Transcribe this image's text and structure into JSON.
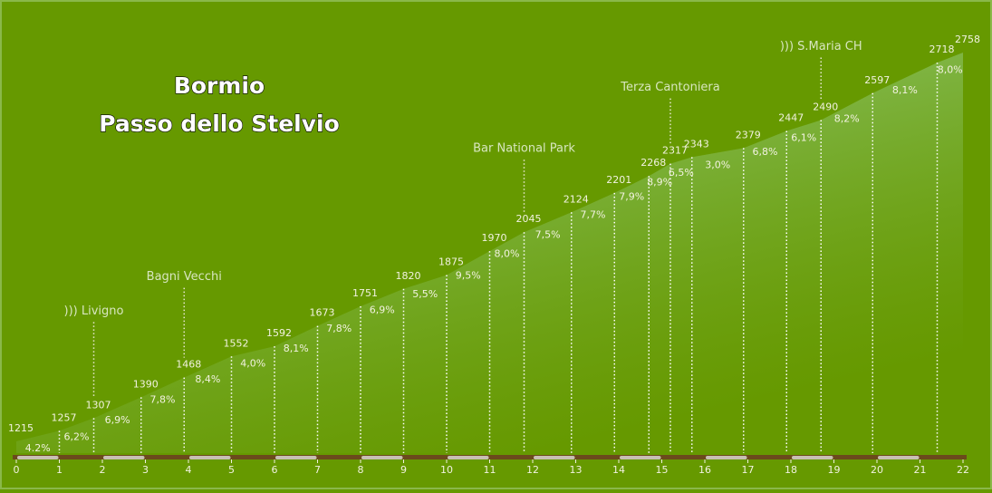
{
  "chart_data": {
    "type": "area",
    "title_lines": [
      "Bormio",
      "Passo dello Stelvio"
    ],
    "x": [
      0,
      1,
      1.8,
      2.9,
      3.9,
      5,
      6,
      7,
      8,
      9,
      10,
      11,
      11.8,
      12.9,
      13.9,
      14.7,
      15.2,
      15.7,
      16.9,
      17.9,
      18.7,
      19.9,
      21.4,
      22
    ],
    "values": [
      1215,
      1257,
      1307,
      1390,
      1468,
      1552,
      1592,
      1673,
      1751,
      1820,
      1875,
      1970,
      2045,
      2124,
      2201,
      2268,
      2317,
      2343,
      2379,
      2447,
      2490,
      2597,
      2718,
      2758
    ],
    "gradient_labels": [
      "4.2%",
      "6,2%",
      "6,9%",
      "7,8%",
      "8,4%",
      "4,0%",
      "8,1%",
      "7,8%",
      "6,9%",
      "5,5%",
      "9,5%",
      "8,0%",
      "7,5%",
      "7,7%",
      "7,9%",
      "8,9%",
      "6,5%",
      "3,0%",
      "6,8%",
      "6,1%",
      "8,2%",
      "8,1%",
      "8,0%"
    ],
    "landmarks": [
      {
        "label": "))) Livigno",
        "x": 1.8
      },
      {
        "label": "Bagni Vecchi",
        "x": 3.9
      },
      {
        "label": "Bar National Park",
        "x": 11.8
      },
      {
        "label": "Terza Cantoniera",
        "x": 15.2
      },
      {
        "label": "))) S.Maria CH",
        "x": 18.7
      }
    ],
    "xlim": [
      0,
      22
    ],
    "xticks": [
      0,
      1,
      2,
      3,
      4,
      5,
      6,
      7,
      8,
      9,
      10,
      11,
      12,
      13,
      14,
      15,
      16,
      17,
      18,
      19,
      20,
      21,
      22
    ],
    "color": "#9fd89a"
  }
}
